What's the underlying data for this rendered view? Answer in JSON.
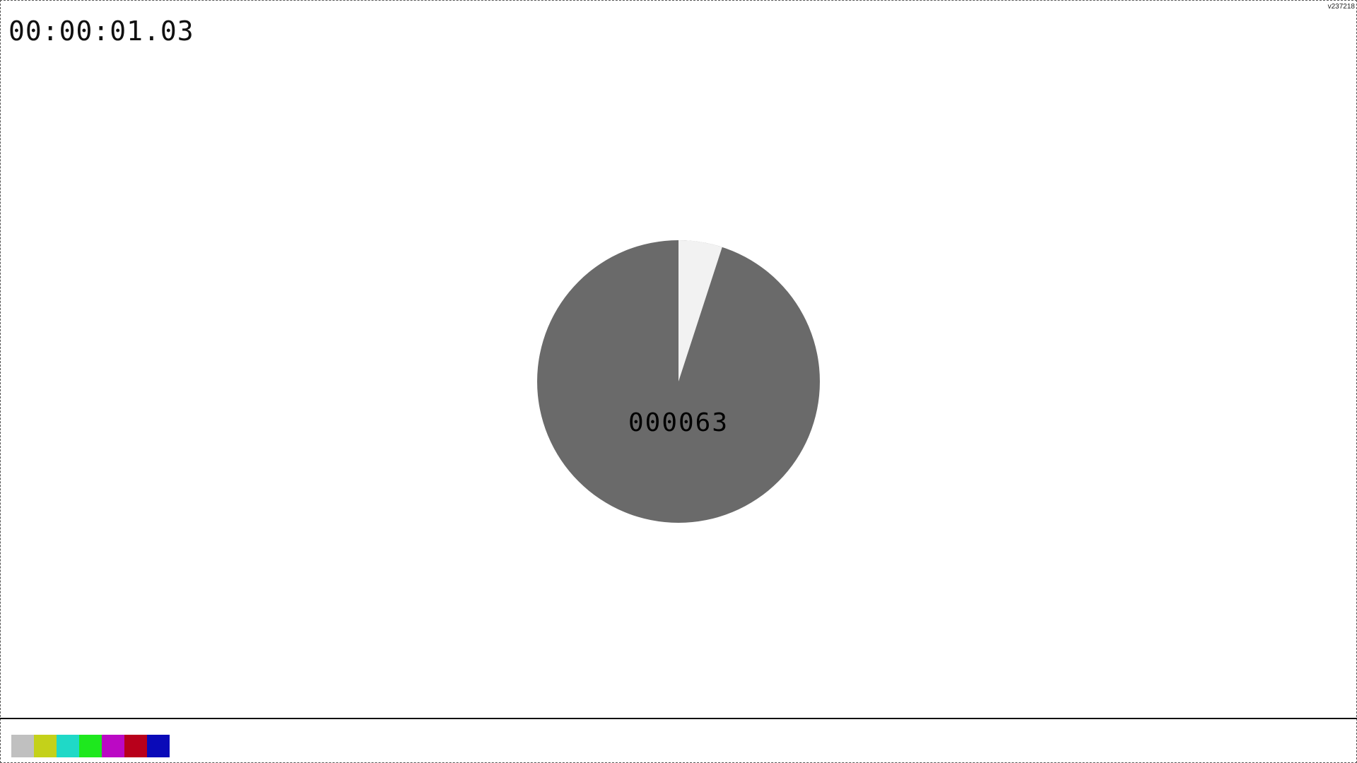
{
  "timecode": "00:00:01.03",
  "version": "v237218",
  "frame_counter": "000063",
  "dial": {
    "filled_fraction": 0.05,
    "background_color": "#6a6a6a",
    "filled_color": "#f2f2f2"
  },
  "color_bars": [
    {
      "name": "gray",
      "color": "#c0c0c0"
    },
    {
      "name": "yellow",
      "color": "#c4d11a"
    },
    {
      "name": "cyan",
      "color": "#1fd9c7"
    },
    {
      "name": "green",
      "color": "#1ee81e"
    },
    {
      "name": "magenta",
      "color": "#bb09c4"
    },
    {
      "name": "red",
      "color": "#b8001b"
    },
    {
      "name": "blue",
      "color": "#0a0ab8"
    }
  ]
}
